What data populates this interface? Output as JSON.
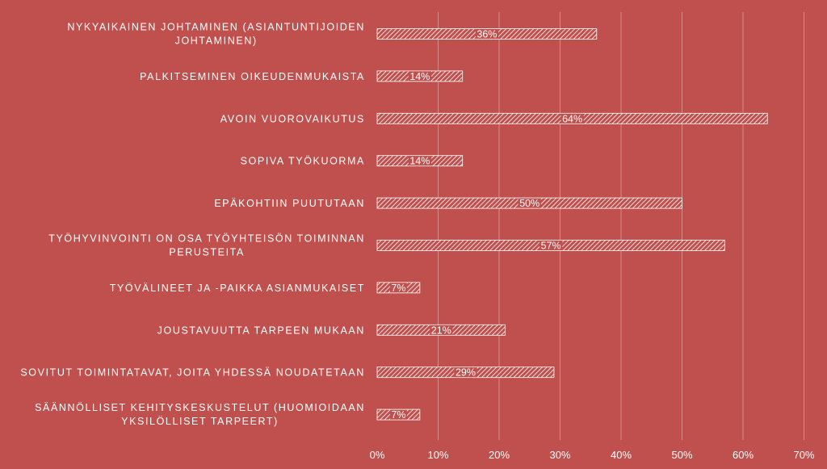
{
  "chart_data": {
    "type": "bar",
    "orientation": "horizontal",
    "categories": [
      [
        "NYKYAIKAINEN JOHTAMINEN (ASIANTUNTIJOIDEN",
        "JOHTAMINEN)"
      ],
      [
        "PALKITSEMINEN OIKEUDENMUKAISTA"
      ],
      [
        "AVOIN VUOROVAIKUTUS"
      ],
      [
        "SOPIVA TYÖKUORMA"
      ],
      [
        "EPÄKOHTIIN PUUTUTAAN"
      ],
      [
        "TYÖHYVINVOINTI ON OSA TYÖYHTEISÖN TOIMINNAN",
        "PERUSTEITA"
      ],
      [
        "TYÖVÄLINEET JA -PAIKKA ASIANMUKAISET"
      ],
      [
        "JOUSTAVUUTTA TARPEEN MUKAAN"
      ],
      [
        "SOVITUT TOIMINTATAVAT, JOITA YHDESSÄ NOUDATETAAN"
      ],
      [
        "SÄÄNNÖLLISET KEHITYSKESKUSTELUT (HUOMIOIDAAN",
        "YKSILÖLLISET TARPEERT)"
      ]
    ],
    "values": [
      36,
      14,
      64,
      14,
      50,
      57,
      7,
      21,
      29,
      7
    ],
    "data_labels": [
      "36%",
      "14%",
      "64%",
      "14%",
      "50%",
      "57%",
      "7%",
      "21%",
      "29%",
      "7%"
    ],
    "xlim": [
      0,
      70
    ],
    "x_ticks": [
      0,
      10,
      20,
      30,
      40,
      50,
      60,
      70
    ],
    "x_tick_labels": [
      "0%",
      "10%",
      "20%",
      "30%",
      "40%",
      "50%",
      "60%",
      "70%"
    ],
    "grid": true,
    "legend": "none",
    "title": "",
    "xlabel": "",
    "ylabel": "",
    "colors": {
      "background": "#c0504d",
      "bar": "#ffffff",
      "gridline": "#d98a88",
      "text": "#ffffff"
    }
  }
}
